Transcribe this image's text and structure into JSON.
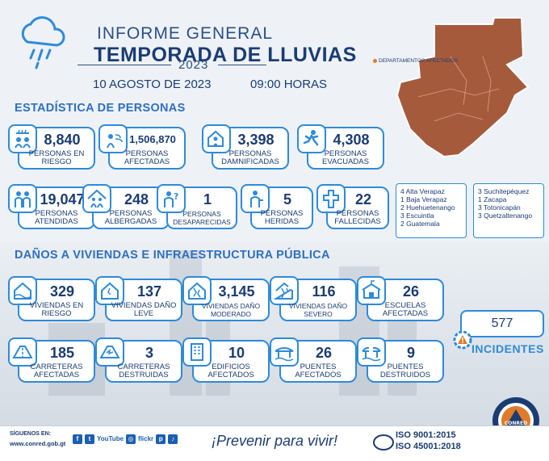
{
  "header": {
    "line1": "INFORME GENERAL",
    "line2": "TEMPORADA DE LLUVIAS",
    "year": "2023",
    "date": "10 AGOSTO DE 2023",
    "time": "09:00 HORAS"
  },
  "sections": {
    "people": "ESTADÍSTICA DE PERSONAS",
    "damage": "DAÑOS A VIVIENDAS E INFRAESTRUCTURA PÚBLICA"
  },
  "map": {
    "legend": "DEPARTAMENTOS AFECTADOS",
    "map_color": "#a65a3c"
  },
  "people_stats": [
    {
      "value": "8,840",
      "label": "PERSONAS EN RIESGO",
      "icon": "people-rain-icon"
    },
    {
      "value": "1,506,870",
      "label": "PERSONAS AFECTADAS",
      "icon": "people-wind-icon"
    },
    {
      "value": "3,398",
      "label": "PERSONAS DAMNIFICADAS",
      "icon": "house-person-icon"
    },
    {
      "value": "4,308",
      "label": "PERSONAS EVACUADAS",
      "icon": "running-person-icon"
    },
    {
      "value": "19,047",
      "label": "PERSONAS ATENDIDAS",
      "icon": "people-care-icon"
    },
    {
      "value": "248",
      "label": "PERSONAS ALBERGADAS",
      "icon": "shelter-icon"
    },
    {
      "value": "1",
      "label": "PERSONAS DESAPARECIDAS",
      "icon": "missing-person-icon"
    },
    {
      "value": "5",
      "label": "PERSONAS HERIDAS",
      "icon": "injured-person-icon"
    },
    {
      "value": "22",
      "label": "PERSONAS FALLECIDAS",
      "icon": "cross-icon"
    }
  ],
  "departments_1": [
    "4 Alta Verapaz",
    "1 Baja Verapaz",
    "2 Huehuetenango",
    "3 Escuintla",
    "2 Guatemala"
  ],
  "departments_2": [
    "3 Suchitepéquez",
    "1 Zacapa",
    "3 Totonicapán",
    "3 Quetzaltenango"
  ],
  "damage_stats": [
    {
      "value": "329",
      "label": "VIVIENDAS EN RIESGO",
      "icon": "house-risk-icon"
    },
    {
      "value": "137",
      "label": "VIVIENDAS DAÑO LEVE",
      "icon": "house-light-damage-icon"
    },
    {
      "value": "3,145",
      "label": "VIVIENDAS DAÑO MODERADO",
      "icon": "house-moderate-damage-icon"
    },
    {
      "value": "116",
      "label": "VIVIENDAS DAÑO SEVERO",
      "icon": "house-severe-damage-icon"
    },
    {
      "value": "26",
      "label": "ESCUELAS AFECTADAS",
      "icon": "school-icon"
    },
    {
      "value": "185",
      "label": "CARRETERAS AFECTADAS",
      "icon": "road-affected-icon"
    },
    {
      "value": "3",
      "label": "CARRETERAS DESTRUIDAS",
      "icon": "road-destroyed-icon"
    },
    {
      "value": "10",
      "label": "EDIFICIOS AFECTADOS",
      "icon": "building-icon"
    },
    {
      "value": "26",
      "label": "PUENTES AFECTADOS",
      "icon": "bridge-icon"
    },
    {
      "value": "9",
      "label": "PUENTES DESTRUIDOS",
      "icon": "bridge-destroyed-icon"
    }
  ],
  "incidents": {
    "value": "577",
    "label": "INCIDENTES"
  },
  "footer": {
    "follow": "SÍGUENOS EN:",
    "website": "www.conred.gob.gt",
    "social_youtube": "YouTube",
    "social_flickr": "flickr",
    "slogan": "¡Prevenir para vivir!",
    "iso1": "ISO 9001:2015",
    "iso2": "ISO 45001:2018",
    "brand": "CONRED"
  },
  "colors": {
    "accent": "#2f8ad8",
    "title": "#1b3c73",
    "section": "#2f6fc0",
    "incident_orange": "#e07b2a"
  }
}
